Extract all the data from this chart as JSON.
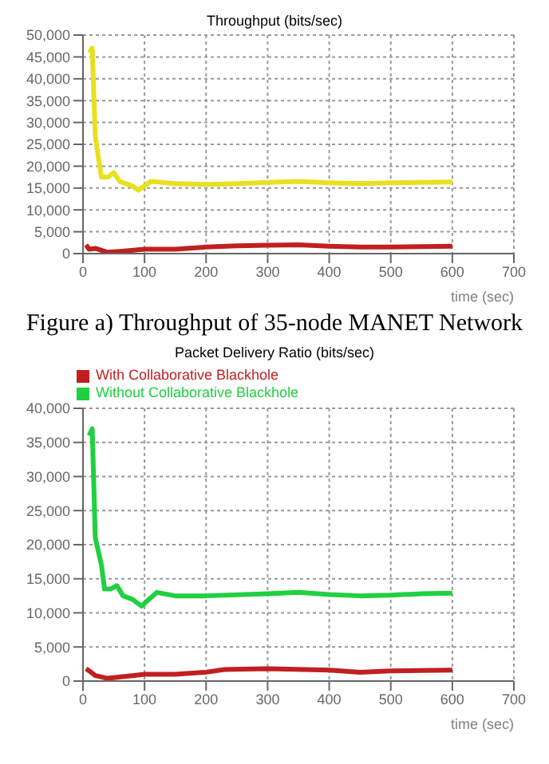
{
  "chart_data": [
    {
      "type": "line",
      "title": "Throughput (bits/sec)",
      "xlabel": "time (sec)",
      "annotations": [
        "Figure a) Throughput of 35-node MANET Network"
      ],
      "xlim": [
        0,
        700
      ],
      "xticks": [
        0,
        100,
        200,
        300,
        400,
        500,
        600,
        700
      ],
      "ylim": [
        0,
        50000
      ],
      "yticks": [
        0,
        {
          "value": 5000,
          "label": "5,000"
        },
        {
          "value": 10000,
          "label": "10,000"
        },
        {
          "value": 15000,
          "label": "15,000"
        },
        {
          "value": 20000,
          "label": "20,000"
        },
        {
          "value": 25000,
          "label": "25,000"
        },
        {
          "value": 30000,
          "label": "30,000"
        },
        {
          "value": 35000,
          "label": "35,000"
        },
        {
          "value": 40000,
          "label": "40,000"
        },
        {
          "value": 45000,
          "label": "45,000"
        },
        {
          "value": 50000,
          "label": "50,000"
        }
      ],
      "grid": true,
      "marker": "none",
      "line_style": "solid",
      "legend": false,
      "series": [
        {
          "color": "#e8e020",
          "x": [
            10,
            15,
            20,
            25,
            30,
            40,
            50,
            60,
            80,
            90,
            100,
            110,
            150,
            200,
            250,
            300,
            350,
            400,
            450,
            500,
            550,
            600
          ],
          "values": [
            46000,
            47000,
            27000,
            22000,
            17500,
            17500,
            18500,
            16500,
            15500,
            14500,
            15500,
            16500,
            16000,
            15800,
            16000,
            16300,
            16500,
            16200,
            16000,
            16200,
            16300,
            16400
          ]
        },
        {
          "color": "#c02020",
          "x": [
            5,
            10,
            20,
            40,
            60,
            100,
            150,
            200,
            250,
            300,
            350,
            400,
            450,
            500,
            600
          ],
          "values": [
            2000,
            1000,
            1200,
            300,
            500,
            1000,
            1000,
            1500,
            1800,
            1900,
            2000,
            1700,
            1500,
            1500,
            1700
          ]
        }
      ]
    },
    {
      "type": "line",
      "title": "Packet Delivery Ratio (bits/sec)",
      "xlabel": "time (sec)",
      "xlim": [
        0,
        700
      ],
      "xticks": [
        0,
        100,
        200,
        300,
        400,
        500,
        600,
        700
      ],
      "ylim": [
        0,
        40000
      ],
      "yticks": [
        0,
        {
          "value": 5000,
          "label": "5,000"
        },
        {
          "value": 10000,
          "label": "10,000"
        },
        {
          "value": 15000,
          "label": "15,000"
        },
        {
          "value": 20000,
          "label": "20,000"
        },
        {
          "value": 25000,
          "label": "25,000"
        },
        {
          "value": 30000,
          "label": "30,000"
        },
        {
          "value": 35000,
          "label": "35,000"
        },
        {
          "value": 40000,
          "label": "40,000"
        }
      ],
      "grid": true,
      "marker": "none",
      "line_style": "solid",
      "legend": "top left",
      "series": [
        {
          "name": "With Collaborative Blackhole",
          "color": "#c02020",
          "x": [
            5,
            10,
            20,
            40,
            80,
            100,
            150,
            200,
            230,
            300,
            400,
            450,
            500,
            600
          ],
          "values": [
            1800,
            1500,
            800,
            400,
            800,
            1000,
            1000,
            1300,
            1700,
            1800,
            1600,
            1300,
            1500,
            1600
          ]
        },
        {
          "name": "Without Collaborative Blackhole",
          "color": "#20d040",
          "x": [
            10,
            15,
            20,
            30,
            35,
            45,
            55,
            65,
            80,
            95,
            120,
            150,
            200,
            300,
            350,
            400,
            450,
            500,
            550,
            600
          ],
          "values": [
            36000,
            37000,
            21000,
            17000,
            13500,
            13500,
            14000,
            12500,
            12000,
            11000,
            13000,
            12500,
            12500,
            12800,
            13000,
            12700,
            12500,
            12600,
            12800,
            12900
          ]
        }
      ]
    }
  ]
}
